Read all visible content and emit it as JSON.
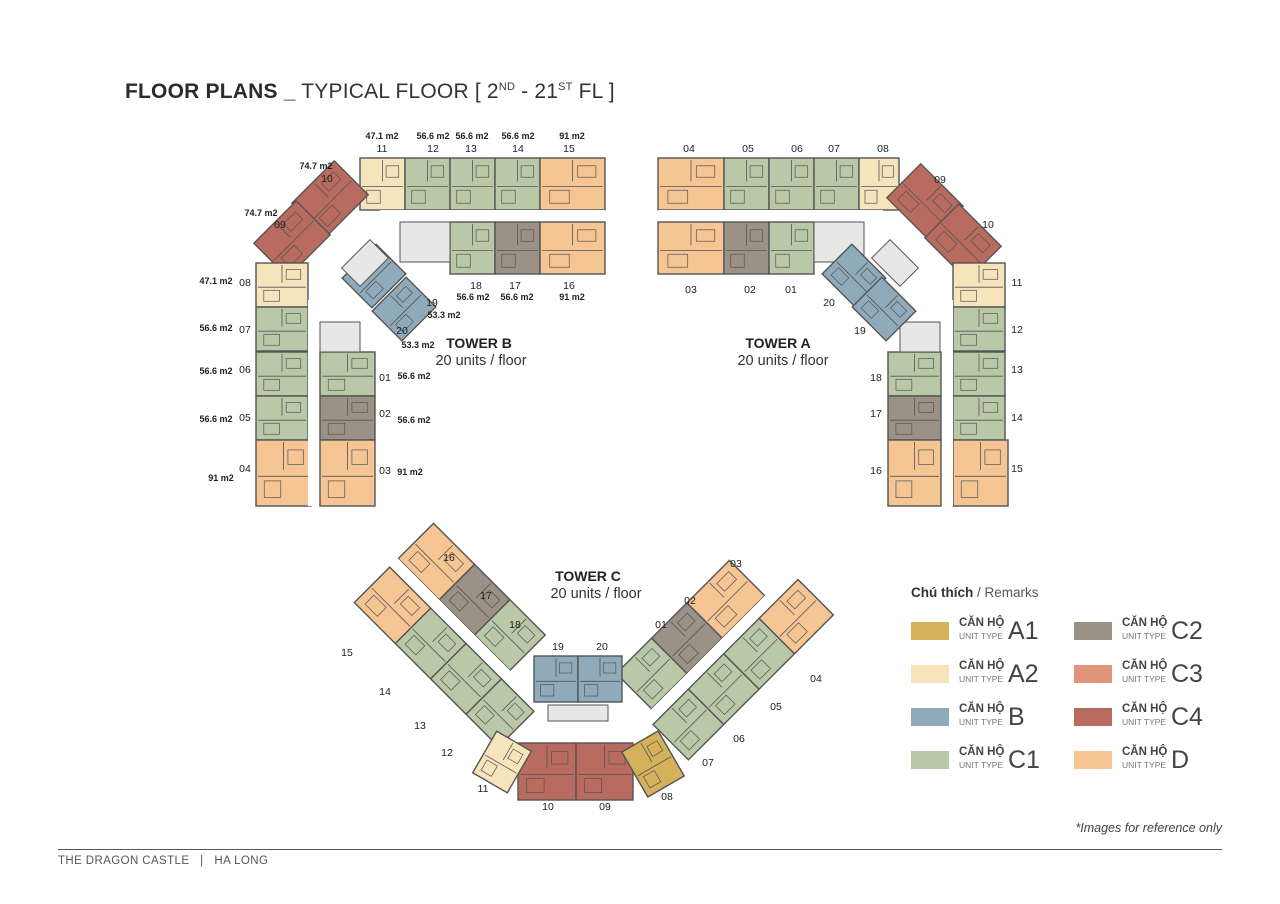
{
  "header": {
    "title_bold": "FLOOR PLANS _",
    "title_light": "TYPICAL FLOOR [ 2",
    "sup1": "ND",
    "title_mid": " - 21",
    "sup2": "ST",
    "title_end": " FL ]"
  },
  "colors": {
    "A1": "#d4b25b",
    "A2": "#f7e3bc",
    "B": "#8fabbb",
    "C1": "#b9c9a7",
    "C2": "#9b9186",
    "C3": "#e0957a",
    "C4": "#b96b5f",
    "D": "#f5c594",
    "wall": "#545454",
    "corridor": "#ffffff",
    "core": "#e7e7e7"
  },
  "towers": [
    {
      "name": "TOWER B",
      "units_label": "20 units / floor",
      "units": [
        {
          "no": "01",
          "type": "C1",
          "area": "56.6 m2"
        },
        {
          "no": "02",
          "type": "C2",
          "area": "56.6 m2"
        },
        {
          "no": "03",
          "type": "D",
          "area": "91 m2"
        },
        {
          "no": "04",
          "type": "D",
          "area": "91 m2"
        },
        {
          "no": "05",
          "type": "C1",
          "area": "56.6 m2"
        },
        {
          "no": "06",
          "type": "C1",
          "area": "56.6 m2"
        },
        {
          "no": "07",
          "type": "C1",
          "area": "56.6 m2"
        },
        {
          "no": "08",
          "type": "A2",
          "area": "47.1 m2"
        },
        {
          "no": "09",
          "type": "C4",
          "area": "74.7 m2"
        },
        {
          "no": "10",
          "type": "C4",
          "area": "74.7 m2"
        },
        {
          "no": "11",
          "type": "A2",
          "area": "47.1 m2"
        },
        {
          "no": "12",
          "type": "C1",
          "area": "56.6 m2"
        },
        {
          "no": "13",
          "type": "C1",
          "area": "56.6 m2"
        },
        {
          "no": "14",
          "type": "C1",
          "area": "56.6 m2"
        },
        {
          "no": "15",
          "type": "D",
          "area": "91 m2"
        },
        {
          "no": "16",
          "type": "D",
          "area": "91 m2"
        },
        {
          "no": "17",
          "type": "C2",
          "area": "56.6 m2"
        },
        {
          "no": "18",
          "type": "C1",
          "area": "56.6 m2"
        },
        {
          "no": "19",
          "type": "B",
          "area": "53.3 m2"
        },
        {
          "no": "20",
          "type": "B",
          "area": "53.3 m2"
        }
      ]
    },
    {
      "name": "TOWER A",
      "units_label": "20 units / floor",
      "units": [
        {
          "no": "01",
          "type": "C1"
        },
        {
          "no": "02",
          "type": "C2"
        },
        {
          "no": "03",
          "type": "D"
        },
        {
          "no": "04",
          "type": "D"
        },
        {
          "no": "05",
          "type": "C1"
        },
        {
          "no": "06",
          "type": "C1"
        },
        {
          "no": "07",
          "type": "C1"
        },
        {
          "no": "08",
          "type": "A2"
        },
        {
          "no": "09",
          "type": "C4"
        },
        {
          "no": "10",
          "type": "C4"
        },
        {
          "no": "11",
          "type": "A2"
        },
        {
          "no": "12",
          "type": "C1"
        },
        {
          "no": "13",
          "type": "C1"
        },
        {
          "no": "14",
          "type": "C1"
        },
        {
          "no": "15",
          "type": "D"
        },
        {
          "no": "16",
          "type": "D"
        },
        {
          "no": "17",
          "type": "C2"
        },
        {
          "no": "18",
          "type": "C1"
        },
        {
          "no": "19",
          "type": "B"
        },
        {
          "no": "20",
          "type": "B"
        }
      ]
    },
    {
      "name": "TOWER C",
      "units_label": "20 units / floor",
      "units": [
        {
          "no": "01",
          "type": "C1"
        },
        {
          "no": "02",
          "type": "C2"
        },
        {
          "no": "03",
          "type": "D"
        },
        {
          "no": "04",
          "type": "D"
        },
        {
          "no": "05",
          "type": "C1"
        },
        {
          "no": "06",
          "type": "C1"
        },
        {
          "no": "07",
          "type": "C1"
        },
        {
          "no": "08",
          "type": "A1"
        },
        {
          "no": "09",
          "type": "C4"
        },
        {
          "no": "10",
          "type": "C4"
        },
        {
          "no": "11",
          "type": "A2"
        },
        {
          "no": "12",
          "type": "C1"
        },
        {
          "no": "13",
          "type": "C1"
        },
        {
          "no": "14",
          "type": "C1"
        },
        {
          "no": "15",
          "type": "D"
        },
        {
          "no": "16",
          "type": "D"
        },
        {
          "no": "17",
          "type": "C2"
        },
        {
          "no": "18",
          "type": "C1"
        },
        {
          "no": "19",
          "type": "B"
        },
        {
          "no": "20",
          "type": "B"
        }
      ]
    }
  ],
  "legend": {
    "title_bold": "Chú thích",
    "title_rest": " / Remarks",
    "items": [
      {
        "can_ho": "CĂN HỘ",
        "unit_type": "UNIT TYPE",
        "code": "A1",
        "color": "#d4b25b"
      },
      {
        "can_ho": "CĂN HỘ",
        "unit_type": "UNIT TYPE",
        "code": "C2",
        "color": "#9b9186"
      },
      {
        "can_ho": "CĂN HỘ",
        "unit_type": "UNIT TYPE",
        "code": "A2",
        "color": "#f7e3bc"
      },
      {
        "can_ho": "CĂN HỘ",
        "unit_type": "UNIT TYPE",
        "code": "C3",
        "color": "#e0957a"
      },
      {
        "can_ho": "CĂN HỘ",
        "unit_type": "UNIT TYPE",
        "code": "B",
        "color": "#8fabbb"
      },
      {
        "can_ho": "CĂN HỘ",
        "unit_type": "UNIT TYPE",
        "code": "C4",
        "color": "#b96b5f"
      },
      {
        "can_ho": "CĂN HỘ",
        "unit_type": "UNIT TYPE",
        "code": "C1",
        "color": "#b9c9a7"
      },
      {
        "can_ho": "CĂN HỘ",
        "unit_type": "UNIT TYPE",
        "code": "D",
        "color": "#f5c594"
      }
    ]
  },
  "note": "*Images for reference only",
  "footer": "THE DRAGON CASTLE   |   HA LONG"
}
